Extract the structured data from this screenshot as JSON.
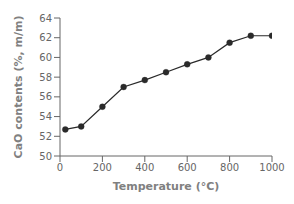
{
  "chart_data": {
    "type": "line",
    "x": [
      25,
      100,
      200,
      300,
      400,
      500,
      600,
      700,
      800,
      900,
      1000
    ],
    "values": [
      52.7,
      53.0,
      55.0,
      57.0,
      57.7,
      58.5,
      59.3,
      60.0,
      61.5,
      62.2,
      62.2
    ],
    "xlim": [
      0,
      1000
    ],
    "ylim": [
      50,
      64
    ],
    "xticks": [
      0,
      200,
      400,
      600,
      800,
      1000
    ],
    "yticks": [
      50,
      52,
      54,
      56,
      58,
      60,
      62,
      64
    ],
    "xlabel": "Temperature (°C)",
    "ylabel": "CaO contents (%, m/m)",
    "color": "#2a2a2a",
    "marker": "circle",
    "grid": false
  }
}
